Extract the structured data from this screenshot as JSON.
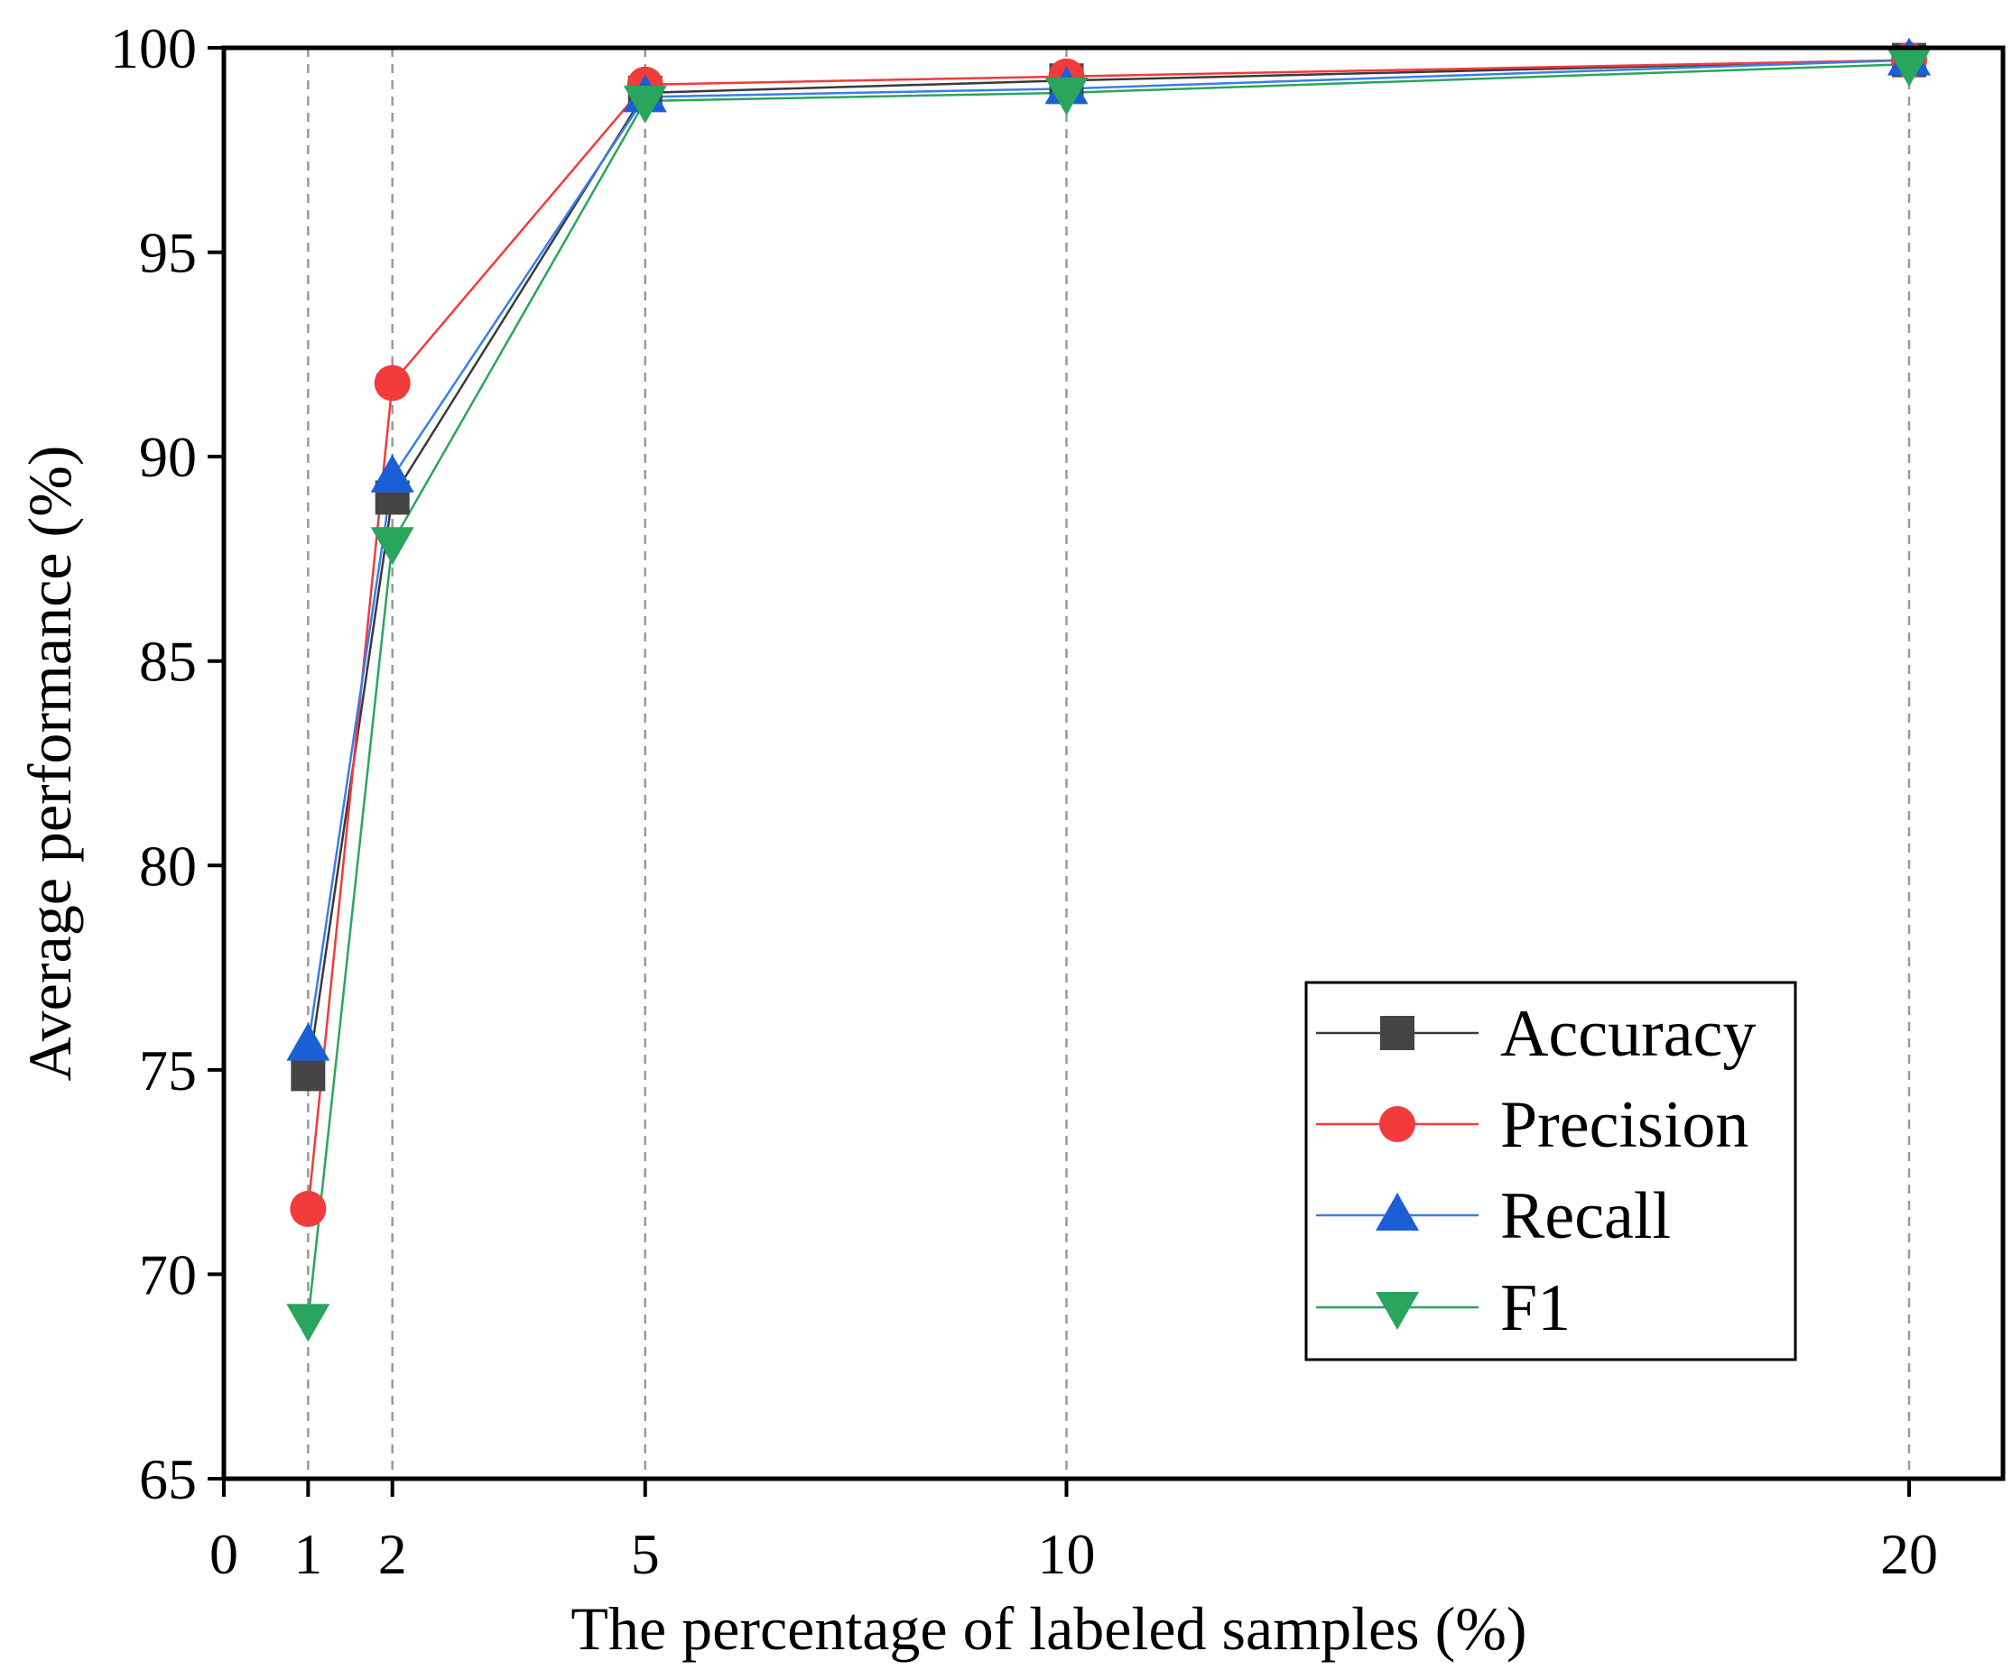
{
  "chart_data": {
    "type": "line",
    "title": "",
    "xlabel": "The percentage of labeled samples (%)",
    "ylabel": "Average performance (%)",
    "x": [
      1,
      2,
      5,
      10,
      20
    ],
    "xticks": [
      0,
      1,
      2,
      5,
      10,
      20
    ],
    "xtick_labels": [
      "0",
      "1",
      "2",
      "5",
      "10",
      "20"
    ],
    "xlim": [
      0,
      21
    ],
    "ylim": [
      65,
      100
    ],
    "yticks": [
      65,
      70,
      75,
      80,
      85,
      90,
      95,
      100
    ],
    "ytick_labels": [
      "65",
      "70",
      "75",
      "80",
      "85",
      "90",
      "95",
      "100"
    ],
    "grid": "vertical dashed lines at data x values",
    "legend_position": "bottom-right",
    "series": [
      {
        "name": "Accuracy",
        "marker": "square",
        "color": "#454545",
        "line_color": "#3a3a3a",
        "values": [
          74.9,
          89.0,
          98.9,
          99.2,
          99.7
        ]
      },
      {
        "name": "Precision",
        "marker": "circle",
        "color": "#f23b3b",
        "line_color": "#f23b3b",
        "values": [
          71.6,
          91.8,
          99.1,
          99.3,
          99.7
        ]
      },
      {
        "name": "Recall",
        "marker": "triangle-up",
        "color": "#1a5fd6",
        "line_color": "#3b7de8",
        "values": [
          75.6,
          89.5,
          98.8,
          99.0,
          99.7
        ]
      },
      {
        "name": "F1",
        "marker": "triangle-down",
        "color": "#2aa55e",
        "line_color": "#2aa55e",
        "values": [
          68.9,
          87.9,
          98.7,
          98.9,
          99.6
        ]
      }
    ]
  }
}
